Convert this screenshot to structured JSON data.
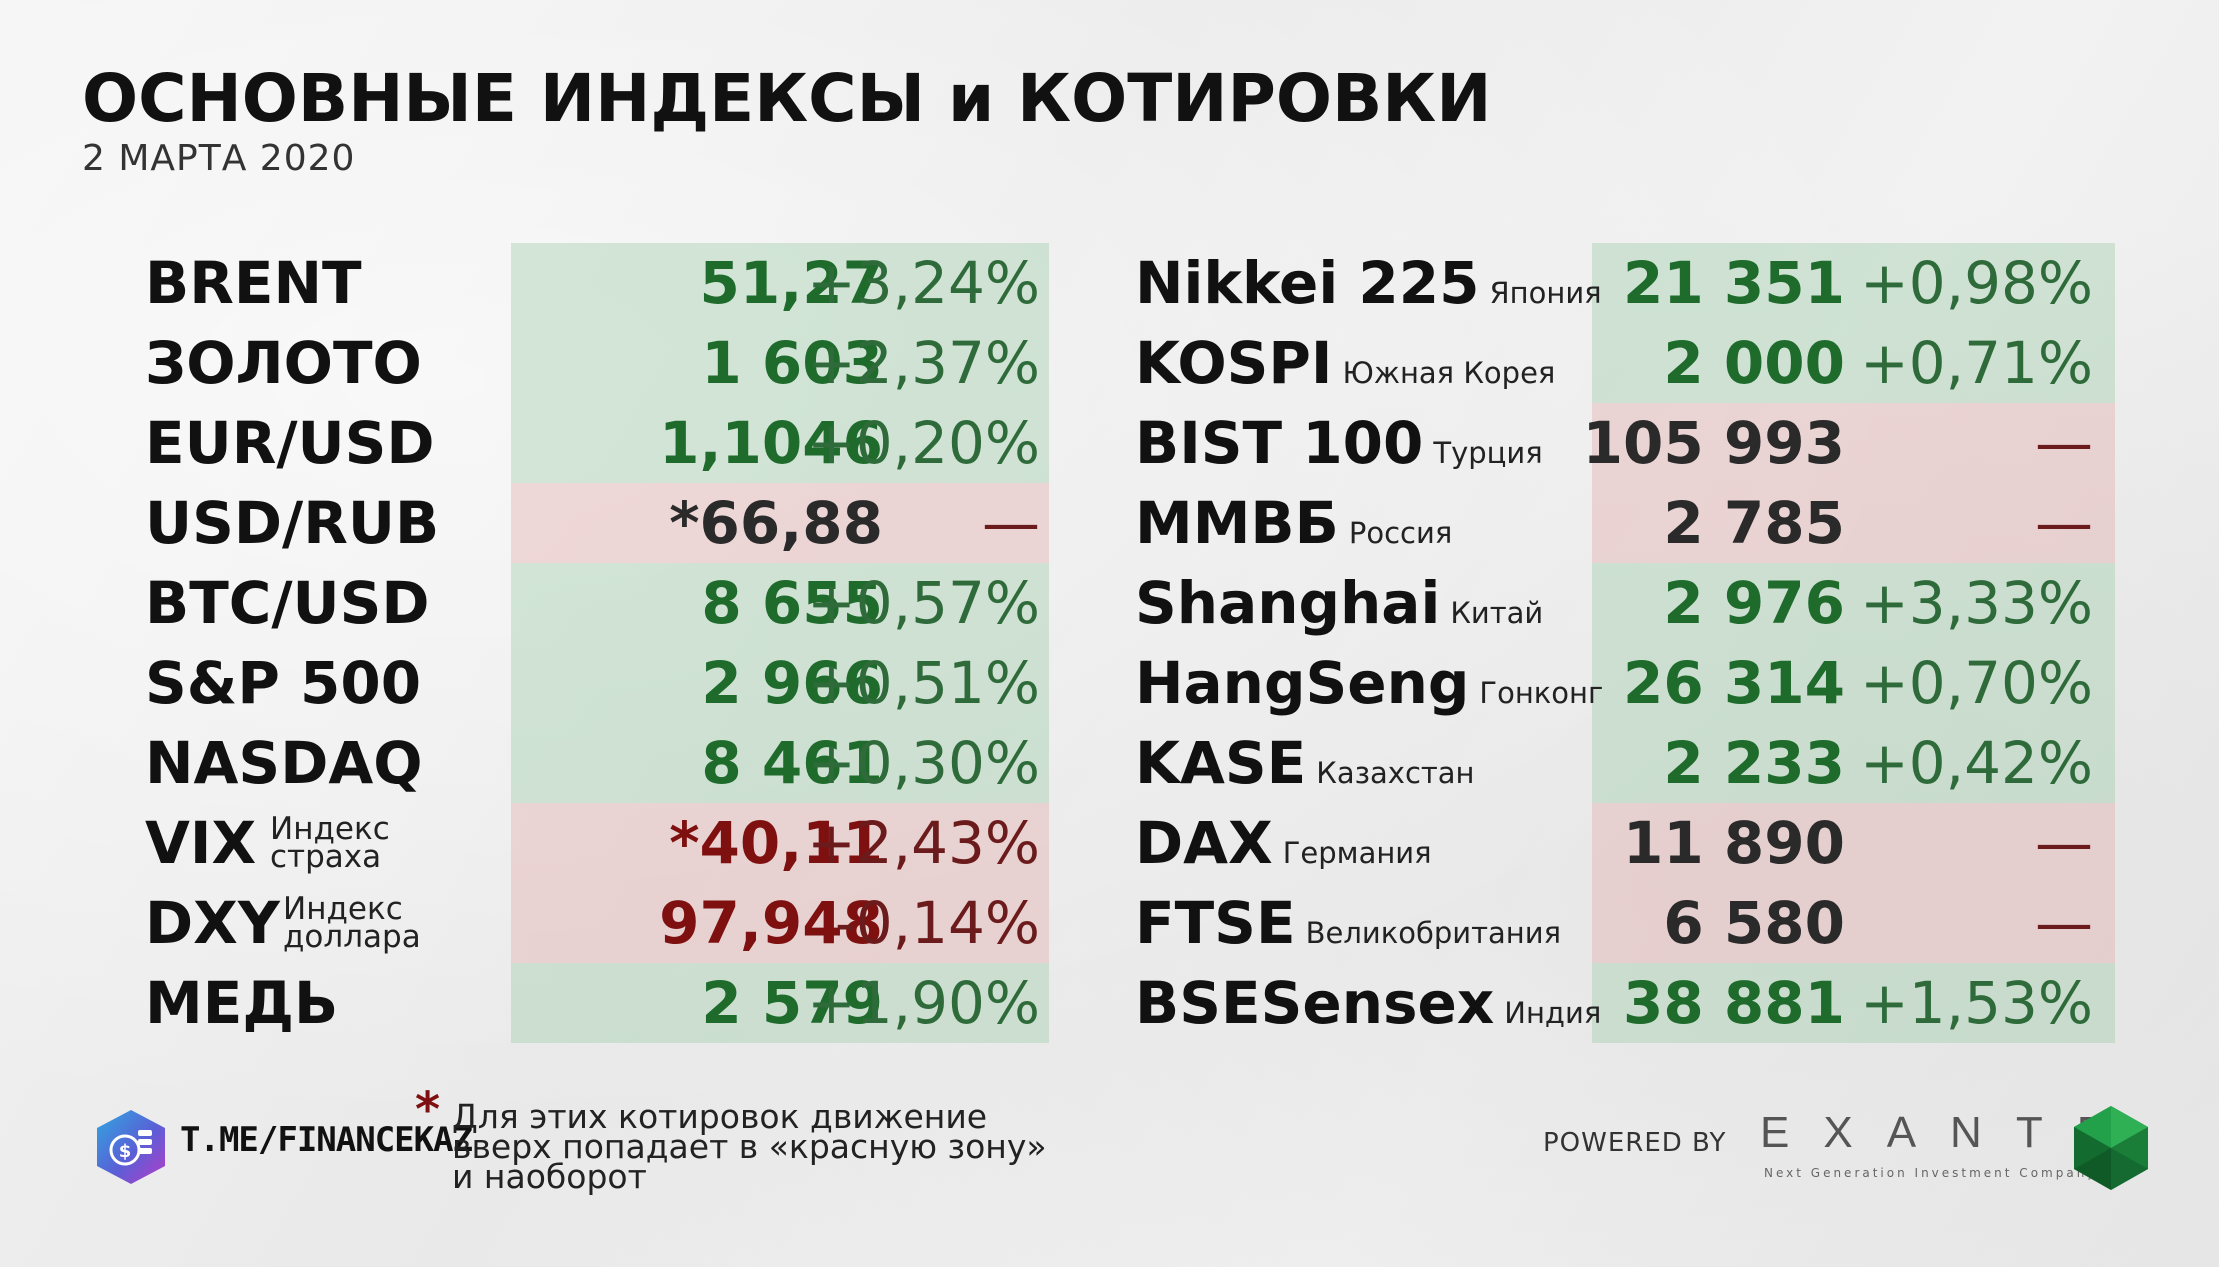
{
  "header": {
    "title": "ОСНОВНЫЕ ИНДЕКСЫ и КОТИРОВКИ",
    "date": "2 МАРТА 2020"
  },
  "left_table": [
    {
      "name": "BRENT",
      "value": "51,27",
      "change": "+3,24%",
      "zone": "green"
    },
    {
      "name": "ЗОЛОТО",
      "value": "1 603",
      "change": "+2,37%",
      "zone": "green"
    },
    {
      "name": "EUR/USD",
      "value": "1,1046",
      "change": "+0,20%",
      "zone": "green"
    },
    {
      "name": "USD/RUB",
      "value": "*66,88",
      "change": "—",
      "zone": "red"
    },
    {
      "name": "BTC/USD",
      "value": "8 655",
      "change": "+0,57%",
      "zone": "green"
    },
    {
      "name": "S&P 500",
      "value": "2 966",
      "change": "+0,51%",
      "zone": "green"
    },
    {
      "name": "NASDAQ",
      "value": "8 461",
      "change": "+0,30%",
      "zone": "green"
    },
    {
      "name": "VIX",
      "sub_line1": "Индекс",
      "sub_line2": "страха",
      "value": "*40,11",
      "change": "+2,43%",
      "zone": "red"
    },
    {
      "name": "DXY",
      "sub_line1": "Индекс",
      "sub_line2": "доллара",
      "value": "97,948",
      "change": "-0,14%",
      "zone": "red"
    },
    {
      "name": "МЕДЬ",
      "value": "2 579",
      "change": "+1,90%",
      "zone": "green"
    }
  ],
  "right_table": [
    {
      "name": "Nikkei 225",
      "country": "Япония",
      "value": "21 351",
      "change": "+0,98%",
      "zone": "green"
    },
    {
      "name": "KOSPI",
      "country": "Южная Корея",
      "value": "2 000",
      "change": "+0,71%",
      "zone": "green"
    },
    {
      "name": "BIST 100",
      "country": "Турция",
      "value": "105 993",
      "change": "—",
      "zone": "red"
    },
    {
      "name": "ММВБ",
      "country": "Россия",
      "value": "2 785",
      "change": "—",
      "zone": "red"
    },
    {
      "name": "Shanghai",
      "country": "Китай",
      "value": "2 976",
      "change": "+3,33%",
      "zone": "green"
    },
    {
      "name": "HangSeng",
      "country": "Гонконг",
      "value": "26 314",
      "change": "+0,70%",
      "zone": "green"
    },
    {
      "name": "KASE",
      "country": "Казахстан",
      "value": "2 233",
      "change": "+0,42%",
      "zone": "green"
    },
    {
      "name": "DAX",
      "country": "Германия",
      "value": "11 890",
      "change": "—",
      "zone": "red"
    },
    {
      "name": "FTSE",
      "country": "Великобритания",
      "value": "6 580",
      "change": "—",
      "zone": "red"
    },
    {
      "name": "BSESensex",
      "country": "Индия",
      "value": "38 881",
      "change": "+1,53%",
      "zone": "green"
    }
  ],
  "footer": {
    "channel": "T.ME/FINANCEKAZ",
    "note_star": "*",
    "note_lines": [
      "Для этих котировок движение",
      "вверх попадает в «красную зону»",
      "и наоборот"
    ],
    "powered_by": "POWERED BY",
    "brand": "EXANTE",
    "brand_tagline": "Next Generation Investment Company"
  },
  "colors": {
    "green_zone": "#a0cdac",
    "red_zone": "#e4aaaa",
    "green_text": "#1e6b2c",
    "red_text": "#7e1010"
  },
  "icons": [
    "telegram-channel-logo-icon",
    "exante-emerald-logo-icon"
  ]
}
